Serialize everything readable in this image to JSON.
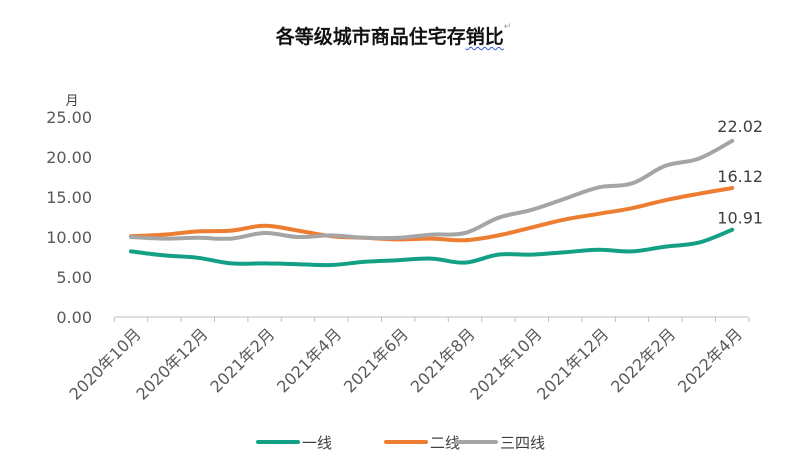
{
  "chart_data": {
    "type": "line",
    "title": "各等级城市商品住宅存销比",
    "title_plain": "各等级城市商品住宅存",
    "title_squiggle": "销比",
    "title_mark": "↵",
    "ylabel": "月",
    "ylim": [
      0,
      25
    ],
    "yticks": [
      "0.00",
      "5.00",
      "10.00",
      "15.00",
      "20.00",
      "25.00"
    ],
    "ytick_values": [
      0,
      5,
      10,
      15,
      20,
      25
    ],
    "x_tick_labels": [
      "2020年10月",
      "2020年12月",
      "2021年2月",
      "2021年4月",
      "2021年6月",
      "2021年8月",
      "2021年10月",
      "2021年12月",
      "2022年2月",
      "2022年4月"
    ],
    "x": [
      "2020年10月",
      "2020年11月",
      "2020年12月",
      "2021年1月",
      "2021年2月",
      "2021年3月",
      "2021年4月",
      "2021年5月",
      "2021年6月",
      "2021年7月",
      "2021年8月",
      "2021年9月",
      "2021年10月",
      "2021年11月",
      "2021年12月",
      "2022年1月",
      "2022年2月",
      "2022年3月",
      "2022年4月"
    ],
    "series": [
      {
        "name": "一线",
        "color": "#14a085",
        "values": [
          8.2,
          7.7,
          7.4,
          6.7,
          6.7,
          6.6,
          6.5,
          6.9,
          7.1,
          7.3,
          6.8,
          7.8,
          7.8,
          8.1,
          8.4,
          8.2,
          8.8,
          9.3,
          10.91
        ],
        "end_label": "10.91"
      },
      {
        "name": "二线",
        "color": "#ed7d31",
        "values": [
          10.1,
          10.3,
          10.7,
          10.8,
          11.4,
          10.8,
          10.1,
          9.9,
          9.7,
          9.8,
          9.6,
          10.2,
          11.2,
          12.2,
          12.9,
          13.6,
          14.6,
          15.4,
          16.12
        ],
        "end_label": "16.12"
      },
      {
        "name": "三四线",
        "color": "#a5a5a5",
        "values": [
          10.0,
          9.8,
          9.9,
          9.8,
          10.5,
          10.0,
          10.2,
          9.9,
          9.9,
          10.3,
          10.5,
          12.4,
          13.4,
          14.8,
          16.2,
          16.7,
          18.9,
          19.8,
          22.02
        ],
        "end_label": "22.02"
      }
    ],
    "legend_position": "bottom",
    "grid": false
  }
}
